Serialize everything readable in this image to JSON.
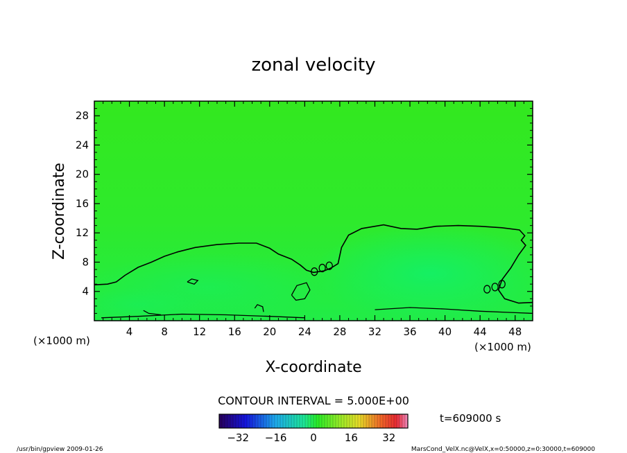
{
  "chart_data": {
    "type": "heatmap",
    "title": "zonal velocity",
    "xlabel": "X-coordinate",
    "ylabel": "Z-coordinate",
    "x_unit": "(×1000 m)",
    "y_unit": "(×1000 m)",
    "xlim": [
      0,
      50
    ],
    "ylim": [
      0,
      30
    ],
    "xticks": [
      4,
      8,
      12,
      16,
      20,
      24,
      28,
      32,
      36,
      40,
      44,
      48
    ],
    "yticks": [
      4,
      8,
      12,
      16,
      20,
      24,
      28
    ],
    "xtick_labels": [
      "4",
      "8",
      "12",
      "16",
      "20",
      "24",
      "28",
      "32",
      "36",
      "40",
      "44",
      "48"
    ],
    "ytick_labels": [
      "4",
      "8",
      "12",
      "16",
      "20",
      "24",
      "28"
    ],
    "contour_interval": "CONTOUR INTERVAL = 5.000E+00",
    "time_label": "t=609000 s",
    "colorbar": {
      "range": [
        -40,
        40
      ],
      "ticks": [
        -32,
        -16,
        0,
        16,
        32
      ],
      "tick_labels": [
        "−32",
        "−16",
        "0",
        "16",
        "32"
      ]
    },
    "zero_contour": [
      [
        0,
        4.9
      ],
      [
        1.5,
        5.0
      ],
      [
        2.5,
        5.3
      ],
      [
        3.5,
        6.2
      ],
      [
        5,
        7.3
      ],
      [
        6.5,
        8.0
      ],
      [
        8,
        8.8
      ],
      [
        9.5,
        9.4
      ],
      [
        11.5,
        10.0
      ],
      [
        14,
        10.4
      ],
      [
        16.5,
        10.6
      ],
      [
        18.5,
        10.6
      ],
      [
        20,
        9.9
      ],
      [
        21,
        9.1
      ],
      [
        22.5,
        8.4
      ],
      [
        23.5,
        7.6
      ],
      [
        24.2,
        6.9
      ],
      [
        25,
        6.6
      ],
      [
        26.2,
        6.8
      ],
      [
        27,
        7.2
      ],
      [
        27.8,
        7.8
      ],
      [
        28.2,
        10.0
      ],
      [
        29,
        11.7
      ],
      [
        30.5,
        12.6
      ],
      [
        33,
        13.1
      ],
      [
        35,
        12.6
      ],
      [
        36.8,
        12.5
      ],
      [
        39,
        12.9
      ],
      [
        41.5,
        13.0
      ],
      [
        44,
        12.9
      ],
      [
        46.5,
        12.7
      ],
      [
        48.5,
        12.4
      ],
      [
        49.1,
        11.6
      ],
      [
        48.7,
        11.0
      ],
      [
        49.2,
        10.3
      ],
      [
        48.4,
        9.0
      ],
      [
        47.5,
        7.2
      ],
      [
        46.5,
        5.6
      ],
      [
        46.1,
        4.2
      ],
      [
        46.8,
        3.0
      ],
      [
        48.4,
        2.4
      ],
      [
        50,
        2.5
      ]
    ],
    "secondary_contours": [
      [
        [
          22.5,
          3.5
        ],
        [
          23.1,
          4.8
        ],
        [
          24.2,
          5.2
        ],
        [
          24.6,
          4.2
        ],
        [
          24.0,
          3.0
        ],
        [
          23.0,
          2.8
        ],
        [
          22.5,
          3.5
        ]
      ],
      [
        [
          10.6,
          5.3
        ],
        [
          11.1,
          5.7
        ],
        [
          11.8,
          5.5
        ],
        [
          11.4,
          5.0
        ],
        [
          10.6,
          5.3
        ]
      ],
      [
        [
          0.8,
          0.4
        ],
        [
          5,
          0.6
        ],
        [
          10,
          0.9
        ],
        [
          15,
          0.8
        ],
        [
          20,
          0.6
        ],
        [
          24,
          0.4
        ]
      ],
      [
        [
          32,
          1.5
        ],
        [
          36,
          1.8
        ],
        [
          40,
          1.6
        ],
        [
          44,
          1.3
        ],
        [
          48,
          1.1
        ],
        [
          50,
          1.0
        ]
      ],
      [
        [
          18.3,
          1.7
        ],
        [
          18.6,
          2.2
        ],
        [
          19.2,
          1.9
        ],
        [
          19.3,
          1.2
        ]
      ],
      [
        [
          5.6,
          1.4
        ],
        [
          6.2,
          1.0
        ],
        [
          7.6,
          0.8
        ]
      ]
    ],
    "small_vortices": [
      [
        25.1,
        6.7
      ],
      [
        26.0,
        7.2
      ],
      [
        26.8,
        7.5
      ],
      [
        44.8,
        4.3
      ],
      [
        45.7,
        4.6
      ],
      [
        46.5,
        5.0
      ]
    ]
  },
  "footer": {
    "left": "/usr/bin/gpview   2009-01-26",
    "right": "MarsCond_VelX.nc@VelX,x=0:50000,z=0:30000,t=609000"
  }
}
